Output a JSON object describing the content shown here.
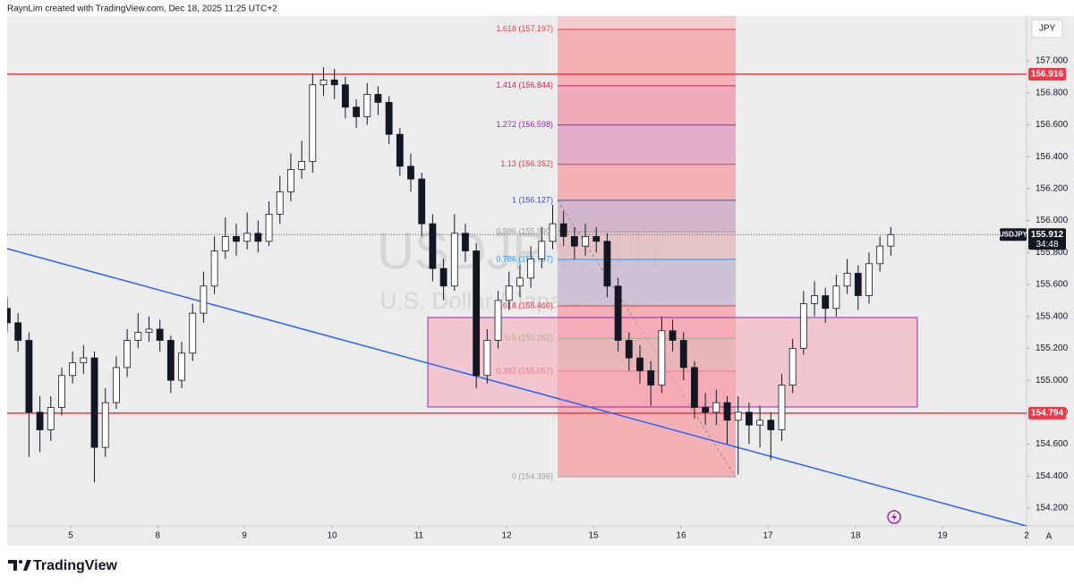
{
  "header": "RaynLim created with TradingView.com, Dec 18, 2025 11:25 UTC+2",
  "footer": "TradingView",
  "chart_data": {
    "type": "candlestick",
    "title": "USDJPY, 1h",
    "subtitle": "U.S. Dollar / Japanese Yen",
    "symbol": "USDJPY",
    "currency": "JPY",
    "countdown": "34:48",
    "last_price": 155.912,
    "autoscale_button": "A",
    "up_color": "#ffffff",
    "down_color": "#131722",
    "wick_color": "#131722",
    "x": [
      0,
      1,
      2,
      3,
      4,
      5,
      6,
      7,
      8,
      9,
      10,
      11,
      12,
      13,
      14,
      15,
      16,
      17,
      18,
      19,
      20,
      21,
      22,
      23,
      24,
      25,
      26,
      27,
      28,
      29,
      30,
      31,
      32,
      33,
      34,
      35,
      36,
      37,
      38,
      39,
      40,
      41,
      42,
      43,
      44,
      45,
      46,
      47,
      48,
      49,
      50,
      51,
      52,
      53,
      54,
      55,
      56,
      57,
      58,
      59,
      60,
      61,
      62,
      63,
      64,
      65,
      66,
      67,
      68,
      69,
      70,
      71,
      72,
      73,
      74,
      75,
      76,
      77,
      78,
      79,
      80,
      81
    ],
    "open": [
      155.45,
      155.36,
      155.25,
      154.8,
      154.69,
      154.83,
      155.03,
      155.11,
      155.14,
      154.58,
      154.86,
      155.08,
      155.25,
      155.3,
      155.32,
      155.25,
      155.0,
      155.17,
      155.42,
      155.59,
      155.81,
      155.9,
      155.87,
      155.92,
      155.87,
      156.04,
      156.18,
      156.32,
      156.37,
      156.85,
      156.88,
      156.85,
      156.71,
      156.65,
      156.79,
      156.74,
      156.54,
      156.34,
      156.26,
      155.98,
      155.7,
      155.59,
      155.92,
      155.81,
      155.03,
      155.25,
      155.5,
      155.59,
      155.64,
      155.76,
      155.87,
      155.98,
      155.9,
      155.84,
      155.9,
      155.87,
      155.59,
      155.25,
      155.14,
      155.06,
      154.97,
      155.31,
      155.25,
      155.08,
      154.83,
      154.8,
      154.86,
      154.75,
      154.8,
      154.72,
      154.75,
      154.69,
      154.97,
      155.2,
      155.48,
      155.53,
      155.45,
      155.59,
      155.67,
      155.53,
      155.73,
      155.84
    ],
    "high": [
      155.52,
      155.42,
      155.3,
      154.9,
      154.9,
      155.08,
      155.18,
      155.22,
      155.18,
      154.95,
      155.15,
      155.32,
      155.42,
      155.4,
      155.38,
      155.28,
      155.24,
      155.48,
      155.68,
      155.9,
      156.02,
      155.98,
      156.05,
      156.0,
      156.12,
      156.28,
      156.42,
      156.5,
      156.92,
      156.96,
      156.95,
      156.9,
      156.76,
      156.86,
      156.84,
      156.78,
      156.58,
      156.42,
      156.3,
      156.04,
      155.76,
      156.04,
      155.98,
      155.86,
      155.32,
      155.56,
      155.68,
      155.72,
      155.84,
      155.96,
      156.1,
      156.06,
      155.96,
      155.98,
      155.96,
      155.92,
      155.64,
      155.3,
      155.22,
      155.12,
      155.4,
      155.38,
      155.3,
      155.12,
      154.92,
      154.94,
      154.9,
      154.9,
      154.86,
      154.84,
      154.8,
      155.04,
      155.26,
      155.56,
      155.62,
      155.58,
      155.66,
      155.76,
      155.72,
      155.8,
      155.9,
      155.96
    ],
    "low": [
      155.3,
      155.18,
      154.52,
      154.55,
      154.62,
      154.78,
      154.98,
      155.04,
      154.36,
      154.52,
      154.82,
      155.02,
      155.2,
      155.24,
      155.18,
      154.92,
      154.95,
      155.12,
      155.36,
      155.54,
      155.76,
      155.78,
      155.82,
      155.8,
      155.84,
      155.98,
      156.12,
      156.26,
      156.3,
      156.78,
      156.76,
      156.64,
      156.58,
      156.6,
      156.66,
      156.48,
      156.28,
      156.18,
      155.9,
      155.62,
      155.5,
      155.56,
      155.74,
      154.95,
      154.98,
      155.2,
      155.44,
      155.52,
      155.58,
      155.7,
      155.82,
      155.84,
      155.76,
      155.78,
      155.8,
      155.52,
      155.18,
      155.06,
      154.98,
      154.84,
      154.92,
      155.18,
      155.0,
      154.76,
      154.72,
      154.72,
      154.6,
      154.41,
      154.6,
      154.58,
      154.5,
      154.62,
      154.92,
      155.16,
      155.4,
      155.36,
      155.4,
      155.54,
      155.44,
      155.48,
      155.68,
      155.78
    ],
    "close": [
      155.36,
      155.25,
      154.8,
      154.69,
      154.83,
      155.03,
      155.11,
      155.14,
      154.58,
      154.86,
      155.08,
      155.25,
      155.3,
      155.32,
      155.25,
      155.0,
      155.17,
      155.42,
      155.59,
      155.81,
      155.9,
      155.87,
      155.92,
      155.87,
      156.04,
      156.18,
      156.32,
      156.37,
      156.85,
      156.88,
      156.85,
      156.71,
      156.65,
      156.79,
      156.74,
      156.54,
      156.34,
      156.26,
      155.98,
      155.7,
      155.59,
      155.92,
      155.81,
      155.03,
      155.25,
      155.5,
      155.59,
      155.64,
      155.76,
      155.87,
      155.98,
      155.9,
      155.84,
      155.9,
      155.87,
      155.59,
      155.25,
      155.14,
      155.06,
      154.97,
      155.31,
      155.25,
      155.08,
      154.83,
      154.8,
      154.86,
      154.75,
      154.8,
      154.72,
      154.75,
      154.69,
      154.97,
      155.2,
      155.48,
      155.53,
      155.45,
      155.59,
      155.67,
      155.53,
      155.73,
      155.84,
      155.912
    ],
    "xlim": [
      0,
      93.44
    ],
    "xticks": [
      {
        "value": 5.82,
        "label": "5"
      },
      {
        "value": 13.8,
        "label": "8"
      },
      {
        "value": 21.74,
        "label": "9"
      },
      {
        "value": 29.78,
        "label": "10"
      },
      {
        "value": 37.74,
        "label": "11"
      },
      {
        "value": 45.78,
        "label": "12"
      },
      {
        "value": 53.74,
        "label": "15"
      },
      {
        "value": 61.77,
        "label": "16"
      },
      {
        "value": 69.73,
        "label": "17"
      },
      {
        "value": 77.77,
        "label": "18"
      },
      {
        "value": 85.73,
        "label": "19"
      },
      {
        "value": 93.44,
        "label": "2"
      }
    ],
    "ylim": [
      154.088,
      157.28
    ],
    "yticks": [
      {
        "value": 157,
        "label": "157.000"
      },
      {
        "value": 156.8,
        "label": "156.800"
      },
      {
        "value": 156.6,
        "label": "156.600"
      },
      {
        "value": 156.4,
        "label": "156.400"
      },
      {
        "value": 156.2,
        "label": "156.200"
      },
      {
        "value": 156,
        "label": "156.000"
      },
      {
        "value": 155.8,
        "label": "155.800"
      },
      {
        "value": 155.6,
        "label": "155.600"
      },
      {
        "value": 155.4,
        "label": "155.400"
      },
      {
        "value": 155.2,
        "label": "155.200"
      },
      {
        "value": 155,
        "label": "155.000"
      },
      {
        "value": 154.8,
        "label": "154.800"
      },
      {
        "value": 154.6,
        "label": "154.600"
      },
      {
        "value": 154.4,
        "label": "154.400"
      },
      {
        "value": 154.2,
        "label": "154.200"
      }
    ],
    "grid": false,
    "hlines": [
      {
        "value": 156.916,
        "color": "#f23645"
      },
      {
        "value": 154.794,
        "color": "#f23645"
      }
    ],
    "trendline": {
      "x": [
        0,
        93.44
      ],
      "y": [
        155.824,
        154.088
      ],
      "color": "#2962ff"
    },
    "zone": {
      "x": [
        38.56,
        83.43
      ],
      "y": [
        155.393,
        154.833
      ],
      "fill": "#f7a8b8",
      "stroke": "#9c27b0"
    },
    "fibonacci": {
      "x": [
        50.45,
        66.78
      ],
      "fill": "#f5c2c7",
      "levels": [
        {
          "price": 157.197,
          "label": "1.618 (157.197)",
          "color": "#f23645"
        },
        {
          "price": 156.844,
          "label": "1.414 (156.844)",
          "color": "#d81b60"
        },
        {
          "price": 156.598,
          "label": "1.272 (156.598)",
          "color": "#9c27b0"
        },
        {
          "price": 156.352,
          "label": "1.13 (156.352)",
          "color": "#f23645"
        },
        {
          "price": 156.127,
          "label": "1 (156.127)",
          "color": "#3f51b5"
        },
        {
          "price": 155.93,
          "label": "0.886 (155.930)",
          "color": "#9e9e9e"
        },
        {
          "price": 155.757,
          "label": "0.786 (155.757)",
          "color": "#2196f3"
        },
        {
          "price": 155.466,
          "label": "0.618 (155.466)",
          "color": "#f23645"
        },
        {
          "price": 155.262,
          "label": "0.5 (155.262)",
          "color": "#4caf50"
        },
        {
          "price": 155.057,
          "label": "0.382 (155.057)",
          "color": "#f23645"
        },
        {
          "price": 154.396,
          "label": "0 (154.396)",
          "color": "#9e9e9e"
        }
      ]
    }
  }
}
